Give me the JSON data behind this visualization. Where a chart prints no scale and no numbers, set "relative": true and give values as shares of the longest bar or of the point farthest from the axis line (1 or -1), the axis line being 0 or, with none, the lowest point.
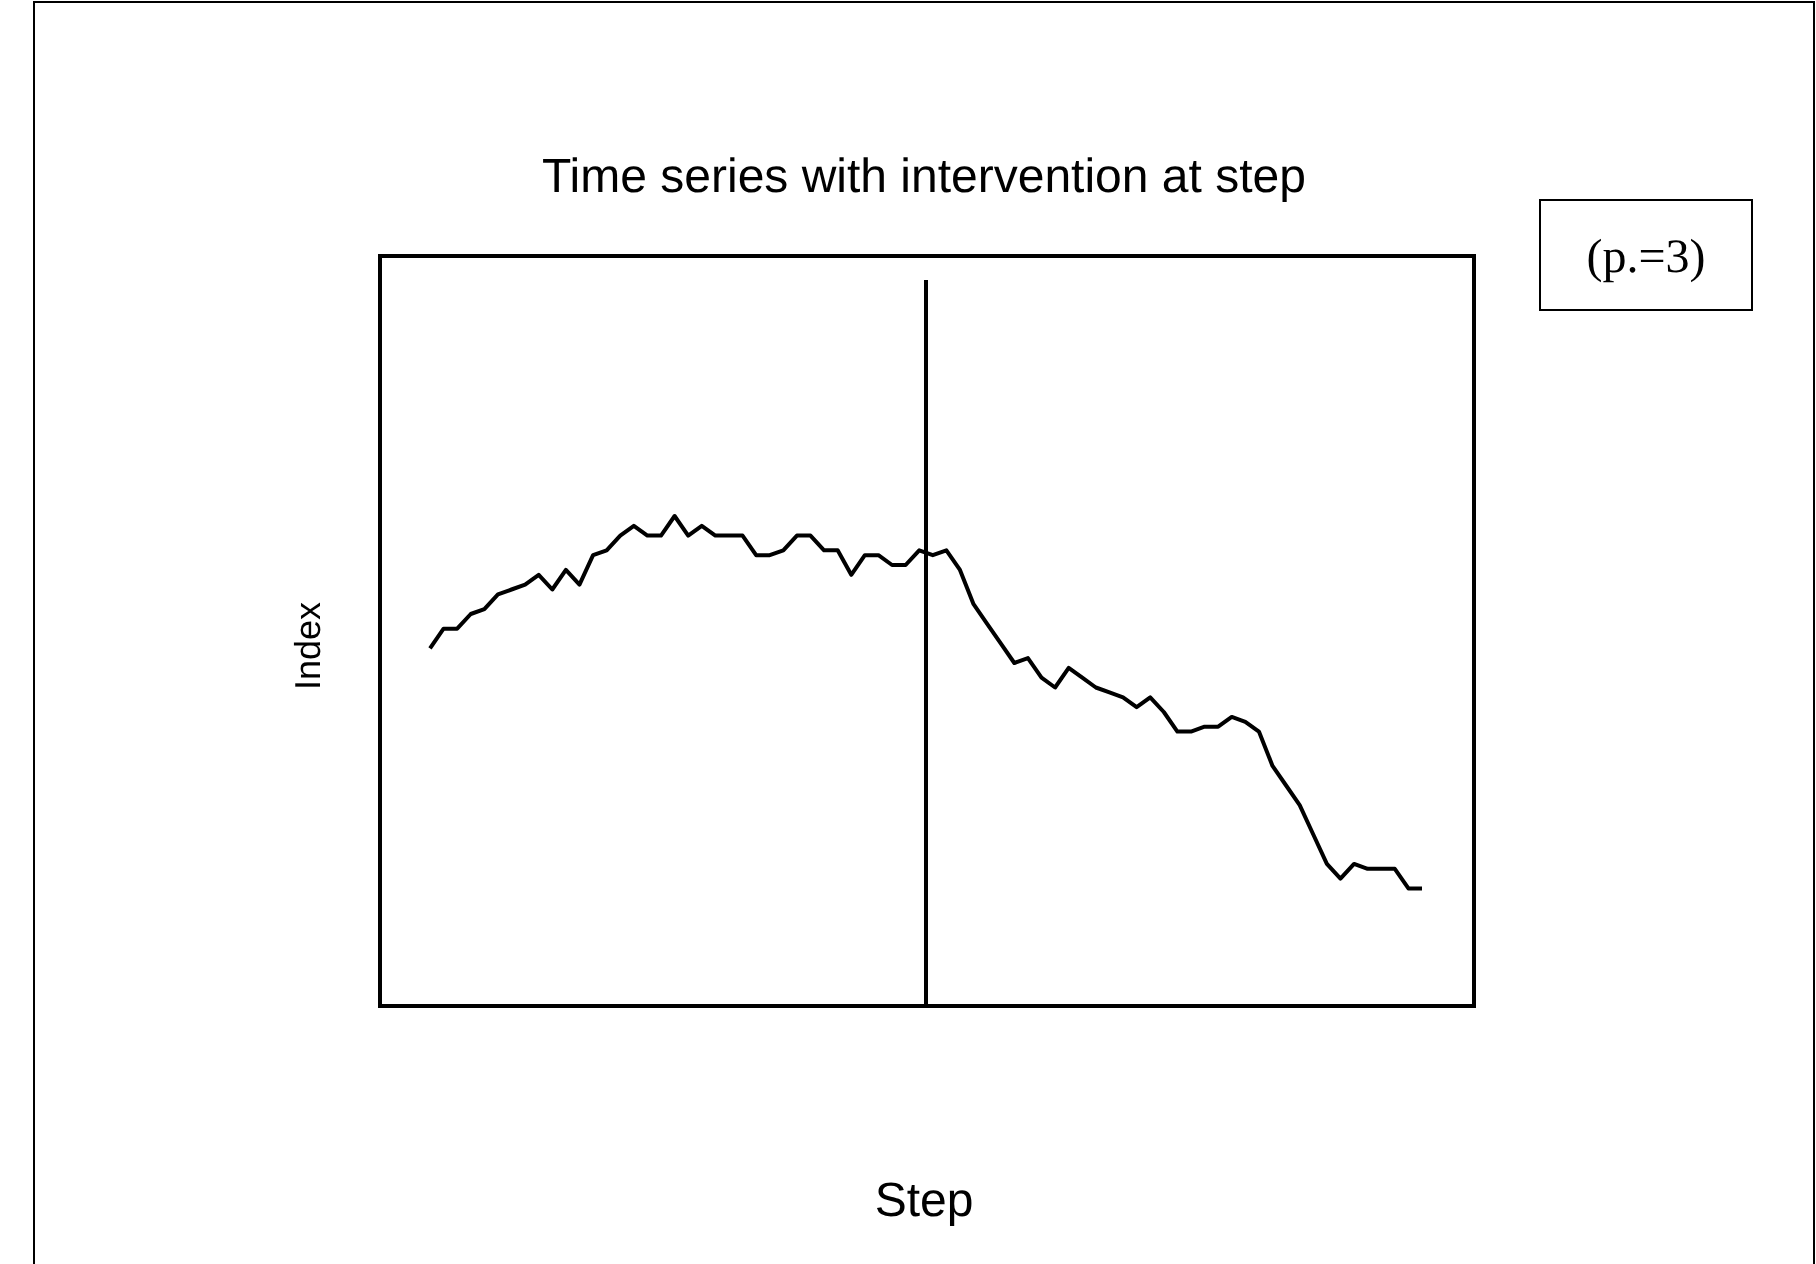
{
  "chart_data": {
    "type": "line",
    "title": "Time series with intervention at step",
    "xlabel": "Step",
    "ylabel": "Index",
    "relative": true,
    "categories": [
      null,
      null,
      null,
      null,
      null,
      null,
      null,
      null,
      null,
      null,
      null,
      null,
      null,
      null,
      null,
      null,
      null,
      null,
      null,
      null,
      null,
      null,
      null,
      null,
      null,
      null,
      null,
      null,
      null,
      null,
      null,
      null,
      null,
      null,
      null,
      null,
      null,
      null,
      null,
      null,
      null,
      null,
      null,
      null,
      null,
      null,
      null,
      null,
      null,
      null,
      null,
      null,
      null,
      null,
      null,
      null,
      null,
      null,
      null,
      null,
      null,
      null,
      null,
      null,
      null,
      null,
      null,
      null,
      null,
      null,
      null,
      null,
      null,
      null
    ],
    "series": [
      {
        "color": "#000000",
        "values": [
          0.73,
          0.77,
          0.77,
          0.8,
          0.81,
          0.84,
          0.85,
          0.86,
          0.88,
          0.85,
          0.89,
          0.86,
          0.92,
          0.93,
          0.96,
          0.98,
          0.96,
          0.96,
          1,
          0.96,
          0.98,
          0.96,
          0.96,
          0.96,
          0.92,
          0.92,
          0.93,
          0.96,
          0.96,
          0.93,
          0.93,
          0.88,
          0.92,
          0.92,
          0.9,
          0.9,
          0.93,
          0.92,
          0.93,
          0.89,
          0.82,
          0.78,
          0.74,
          0.7,
          0.71,
          0.67,
          0.65,
          0.69,
          0.67,
          0.65,
          0.64,
          0.63,
          0.61,
          0.63,
          0.6,
          0.56,
          0.56,
          0.57,
          0.57,
          0.59,
          0.58,
          0.56,
          0.49,
          0.45,
          0.41,
          0.35,
          0.29,
          0.26,
          0.29,
          0.28,
          0.28,
          0.28,
          0.24,
          0.24
        ]
      }
    ],
    "annotations": [
      "(p.=3)"
    ],
    "marker": "none",
    "line_style": "solid"
  }
}
